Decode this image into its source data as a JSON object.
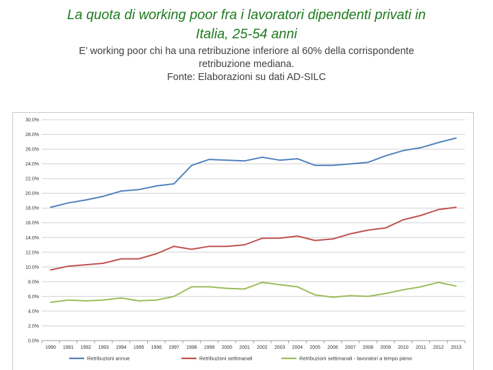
{
  "title_lines": [
    "La quota di working poor fra i lavoratori dipendenti privati in",
    "Italia, 25-54 anni"
  ],
  "subtitle_lines": [
    "E’ working poor chi ha una retribuzione inferiore al 60% della corrispondente",
    "retribuzione mediana.",
    "Fonte: Elaborazioni su dati AD-SILC"
  ],
  "chart_data": {
    "type": "line",
    "title": "",
    "xlabel": "",
    "ylabel": "",
    "ylim": [
      0,
      30
    ],
    "y_ticks": [
      "0.0%",
      "2.0%",
      "4.0%",
      "6.0%",
      "8.0%",
      "10.0%",
      "12.0%",
      "14.0%",
      "16.0%",
      "18.0%",
      "20.0%",
      "22.0%",
      "24.0%",
      "26.0%",
      "28.0%",
      "30.0%"
    ],
    "grid": true,
    "legend_position": "bottom",
    "x": [
      "1990",
      "1991",
      "1992",
      "1993",
      "1994",
      "1995",
      "1996",
      "1997",
      "1998",
      "1999",
      "2000",
      "2001",
      "2002",
      "2003",
      "2004",
      "2005",
      "2006",
      "2007",
      "2008",
      "2009",
      "2010",
      "2011",
      "2012",
      "2013"
    ],
    "series": [
      {
        "name": "Retribuzioni annue",
        "color": "#4f81bd",
        "values": [
          18.1,
          18.7,
          19.1,
          19.6,
          20.3,
          20.5,
          21.0,
          21.3,
          23.8,
          24.6,
          24.5,
          24.4,
          24.9,
          24.5,
          24.7,
          23.8,
          23.8,
          24.0,
          24.2,
          25.1,
          25.8,
          26.2,
          26.9,
          27.5
        ]
      },
      {
        "name": "Retribuzioni settimanali",
        "color": "#c0504d",
        "values": [
          9.6,
          10.1,
          10.3,
          10.5,
          11.1,
          11.1,
          11.8,
          12.8,
          12.4,
          12.8,
          12.8,
          13.0,
          13.9,
          13.9,
          14.2,
          13.6,
          13.8,
          14.5,
          15.0,
          15.3,
          16.4,
          17.0,
          17.8,
          18.1
        ]
      },
      {
        "name": "Retribuzioni settimanali - lavoratori a tempo pieno",
        "color": "#9bbb59",
        "values": [
          5.2,
          5.5,
          5.4,
          5.5,
          5.8,
          5.4,
          5.5,
          6.0,
          7.3,
          7.3,
          7.1,
          7.0,
          7.9,
          7.6,
          7.3,
          6.2,
          5.9,
          6.1,
          6.0,
          6.4,
          6.9,
          7.3,
          7.9,
          7.4
        ]
      }
    ]
  }
}
